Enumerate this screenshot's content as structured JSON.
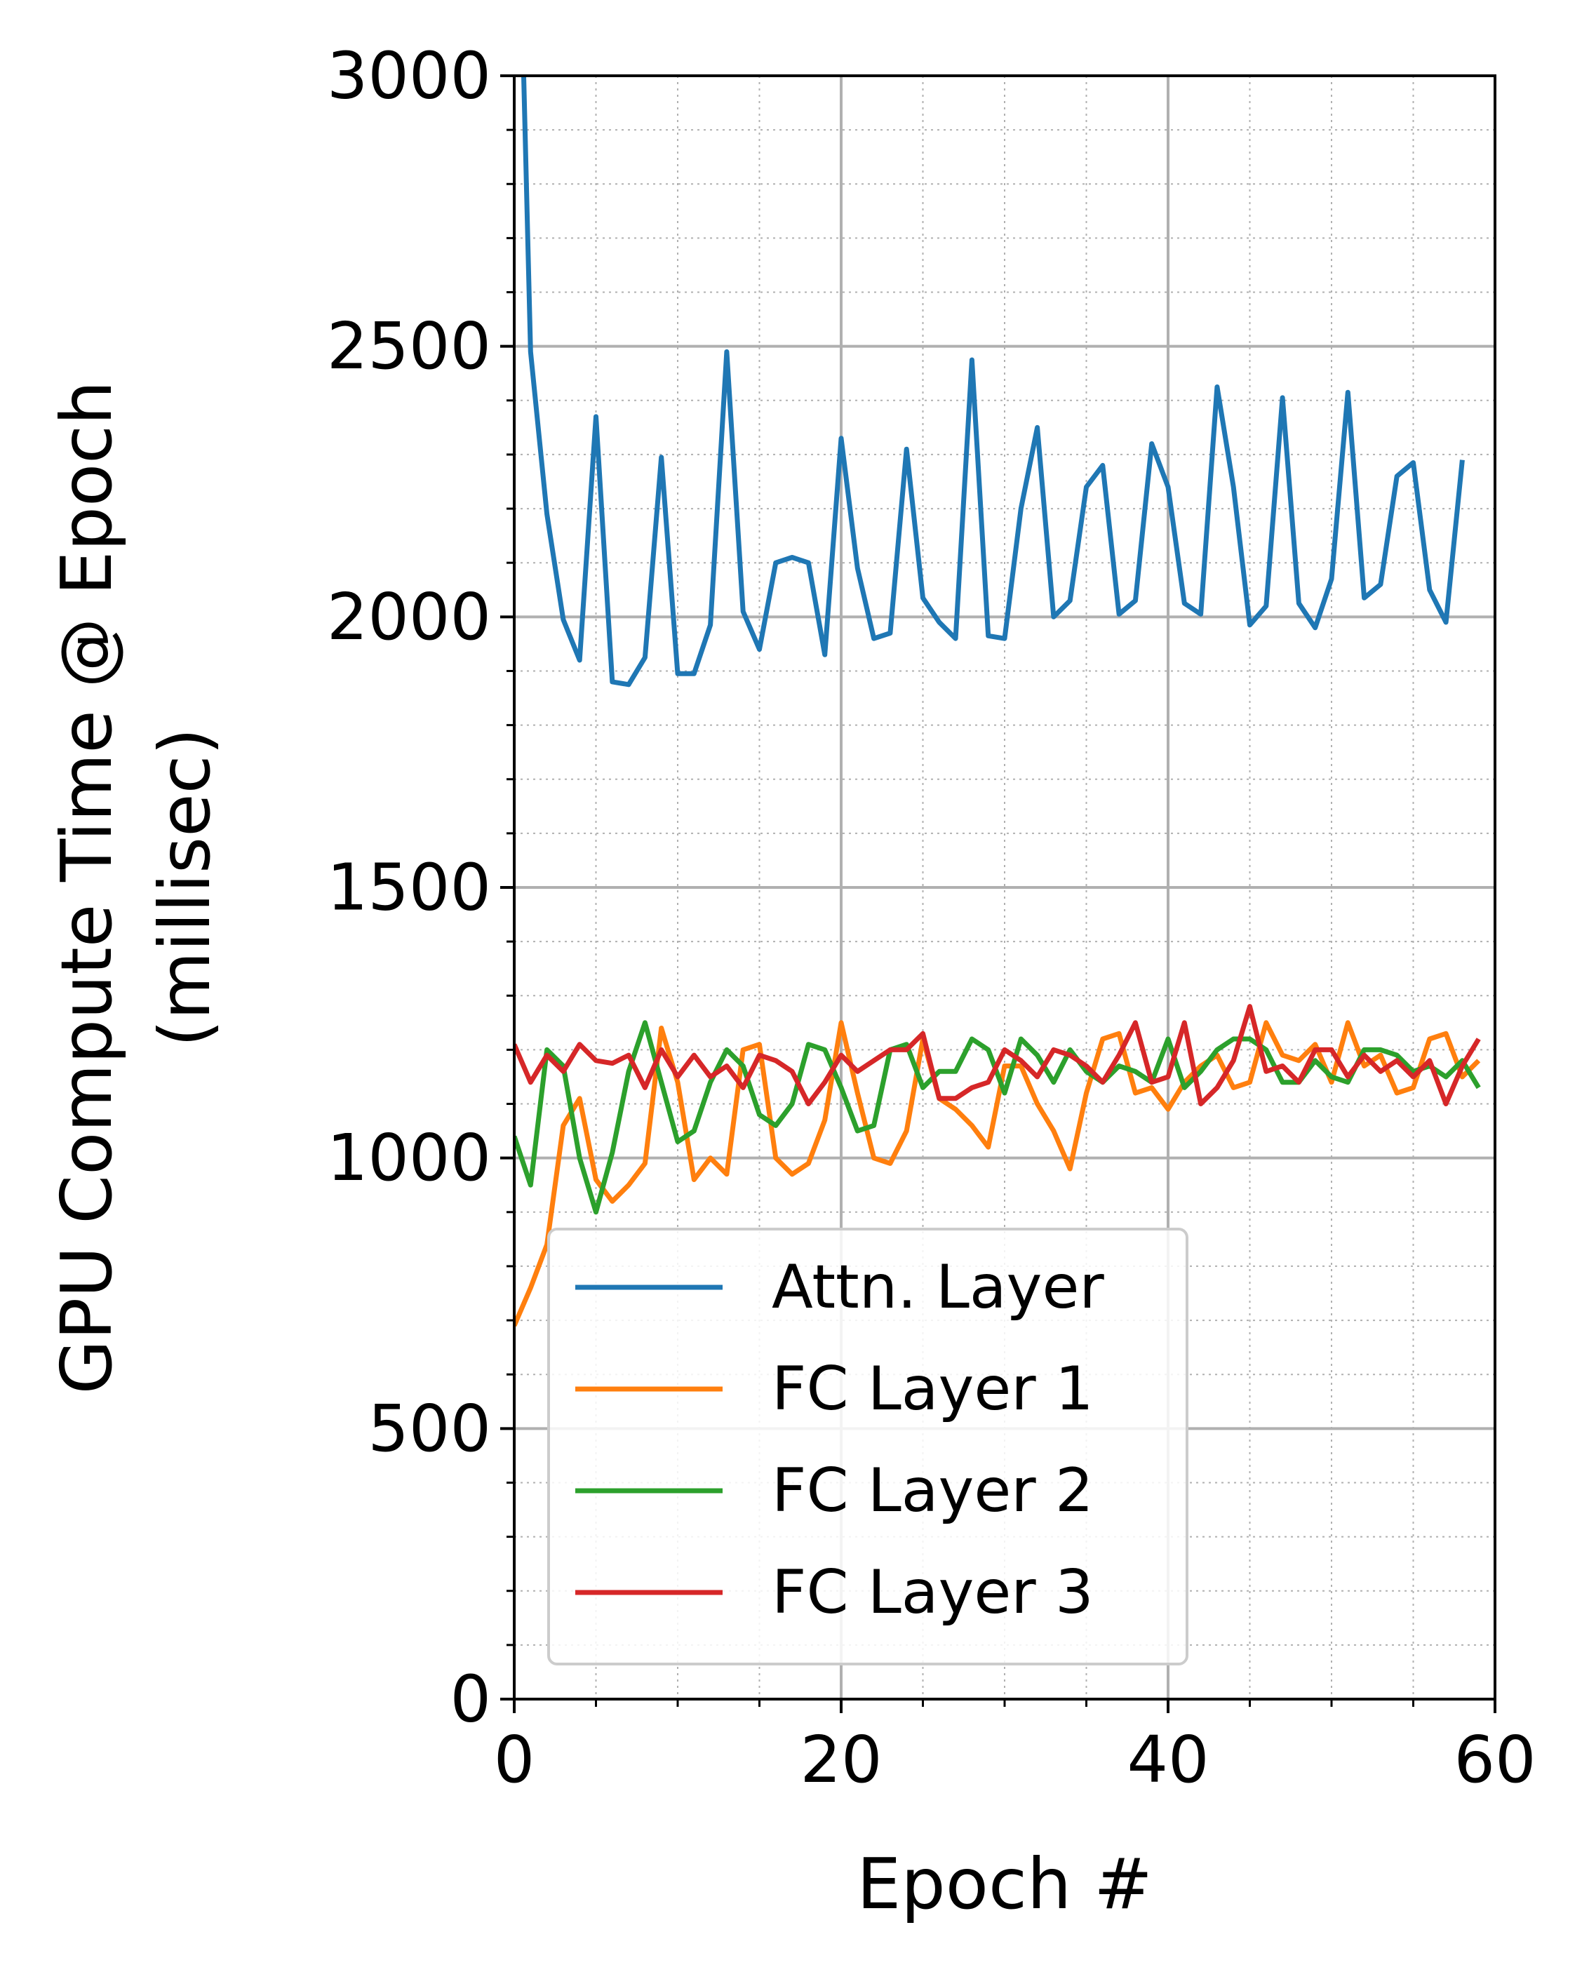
{
  "chart_data": {
    "type": "line",
    "xlabel": "Epoch #",
    "ylabel": [
      "GPU Compute Time @ Epoch",
      "(millisec)"
    ],
    "xlim": [
      0,
      60
    ],
    "ylim": [
      0,
      3000
    ],
    "xticks": [
      0,
      20,
      40,
      60
    ],
    "yticks": [
      0,
      500,
      1000,
      1500,
      2000,
      2500,
      3000
    ],
    "grid": {
      "major": true,
      "minor": true
    },
    "legend_position": "lower-left",
    "series": [
      {
        "name": "Attn. Layer",
        "color": "#1f77b4",
        "x": [
          0,
          1,
          2,
          3,
          4,
          5,
          6,
          7,
          8,
          9,
          10,
          11,
          12,
          13,
          14,
          15,
          16,
          17,
          18,
          19,
          20,
          21,
          22,
          23,
          24,
          25,
          26,
          27,
          28,
          29,
          30,
          31,
          32,
          33,
          34,
          35,
          36,
          37,
          38,
          39,
          40,
          41,
          42,
          43,
          44,
          45,
          46,
          47,
          48,
          49,
          50,
          51,
          52,
          53,
          54,
          55,
          56,
          57,
          58
        ],
        "values": [
          3700,
          2490,
          2190,
          1995,
          1920,
          2370,
          1880,
          1875,
          1925,
          2295,
          1895,
          1895,
          1985,
          2490,
          2010,
          1940,
          2100,
          2110,
          2100,
          1930,
          2330,
          2090,
          1960,
          1970,
          2310,
          2035,
          1990,
          1960,
          2475,
          1965,
          1960,
          2200,
          2350,
          2000,
          2030,
          2240,
          2280,
          2005,
          2030,
          2320,
          2240,
          2025,
          2005,
          2425,
          2240,
          1985,
          2020,
          2405,
          2025,
          1980,
          2070,
          2415,
          2035,
          2060,
          2260,
          2285,
          2050,
          1990,
          2290
        ]
      },
      {
        "name": "FC Layer 1",
        "color": "#ff7f0e",
        "x": [
          0,
          1,
          2,
          3,
          4,
          5,
          6,
          7,
          8,
          9,
          10,
          11,
          12,
          13,
          14,
          15,
          16,
          17,
          18,
          19,
          20,
          21,
          22,
          23,
          24,
          25,
          26,
          27,
          28,
          29,
          30,
          31,
          32,
          33,
          34,
          35,
          36,
          37,
          38,
          39,
          40,
          41,
          42,
          43,
          44,
          45,
          46,
          47,
          48,
          49,
          50,
          51,
          52,
          53,
          54,
          55,
          56,
          57,
          58,
          59
        ],
        "values": [
          690,
          760,
          840,
          1060,
          1110,
          960,
          920,
          950,
          990,
          1240,
          1140,
          960,
          1000,
          970,
          1200,
          1210,
          1000,
          970,
          990,
          1070,
          1250,
          1120,
          1000,
          990,
          1050,
          1220,
          1110,
          1090,
          1060,
          1020,
          1170,
          1170,
          1100,
          1050,
          980,
          1120,
          1220,
          1230,
          1120,
          1130,
          1090,
          1140,
          1170,
          1190,
          1130,
          1140,
          1250,
          1190,
          1180,
          1210,
          1140,
          1250,
          1170,
          1190,
          1120,
          1130,
          1220,
          1230,
          1150,
          1180
        ]
      },
      {
        "name": "FC Layer 2",
        "color": "#2ca02c",
        "x": [
          0,
          1,
          2,
          3,
          4,
          5,
          6,
          7,
          8,
          9,
          10,
          11,
          12,
          13,
          14,
          15,
          16,
          17,
          18,
          19,
          20,
          21,
          22,
          23,
          24,
          25,
          26,
          27,
          28,
          29,
          30,
          31,
          32,
          33,
          34,
          35,
          36,
          37,
          38,
          39,
          40,
          41,
          42,
          43,
          44,
          45,
          46,
          47,
          48,
          49,
          50,
          51,
          52,
          53,
          54,
          55,
          56,
          57,
          58,
          59
        ],
        "values": [
          1040,
          950,
          1200,
          1170,
          1000,
          900,
          1010,
          1160,
          1250,
          1140,
          1030,
          1050,
          1140,
          1200,
          1170,
          1080,
          1060,
          1100,
          1210,
          1200,
          1130,
          1050,
          1060,
          1200,
          1210,
          1130,
          1160,
          1160,
          1220,
          1200,
          1120,
          1220,
          1190,
          1140,
          1200,
          1160,
          1140,
          1170,
          1160,
          1140,
          1220,
          1130,
          1160,
          1200,
          1220,
          1220,
          1200,
          1140,
          1140,
          1180,
          1150,
          1140,
          1200,
          1200,
          1190,
          1160,
          1170,
          1150,
          1180,
          1130
        ]
      },
      {
        "name": "FC Layer 3",
        "color": "#d62728",
        "x": [
          0,
          1,
          2,
          3,
          4,
          5,
          6,
          7,
          8,
          9,
          10,
          11,
          12,
          13,
          14,
          15,
          16,
          17,
          18,
          19,
          20,
          21,
          22,
          23,
          24,
          25,
          26,
          27,
          28,
          29,
          30,
          31,
          32,
          33,
          34,
          35,
          36,
          37,
          38,
          39,
          40,
          41,
          42,
          43,
          44,
          45,
          46,
          47,
          48,
          49,
          50,
          51,
          52,
          53,
          54,
          55,
          56,
          57,
          58,
          59
        ],
        "values": [
          1210,
          1140,
          1190,
          1160,
          1210,
          1180,
          1175,
          1190,
          1130,
          1200,
          1150,
          1190,
          1150,
          1170,
          1130,
          1190,
          1180,
          1160,
          1100,
          1140,
          1190,
          1160,
          1180,
          1200,
          1200,
          1230,
          1110,
          1110,
          1130,
          1140,
          1200,
          1180,
          1150,
          1200,
          1190,
          1170,
          1140,
          1190,
          1250,
          1140,
          1150,
          1250,
          1100,
          1130,
          1180,
          1280,
          1160,
          1170,
          1140,
          1200,
          1200,
          1150,
          1190,
          1160,
          1180,
          1150,
          1180,
          1100,
          1170,
          1220
        ]
      }
    ]
  }
}
